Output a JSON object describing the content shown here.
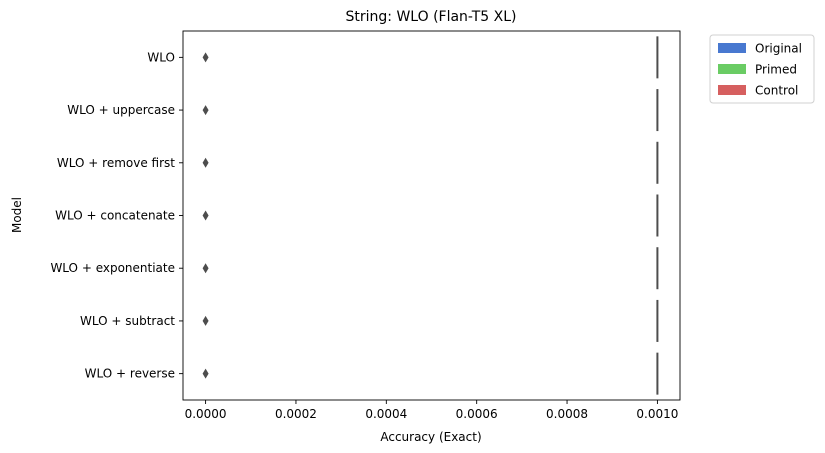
{
  "chart_data": {
    "type": "box",
    "title": "String: WLO (Flan-T5 XL)",
    "xlabel": "Accuracy (Exact)",
    "ylabel": "Model",
    "categories": [
      "WLO",
      "WLO + uppercase",
      "WLO + remove first",
      "WLO + concatenate",
      "WLO + exponentiate",
      "WLO + subtract",
      "WLO + reverse"
    ],
    "xlim": [
      -5e-05,
      0.00105
    ],
    "xticks": [
      "0.0000",
      "0.0002",
      "0.0004",
      "0.0006",
      "0.0008",
      "0.0010"
    ],
    "xtick_values": [
      0,
      0.0002,
      0.0004,
      0.0006,
      0.0008,
      0.001
    ],
    "box_value": 0.001,
    "outlier_value": 0,
    "grid": false,
    "legend_position": "outside-top-right",
    "legend": [
      {
        "name": "Original",
        "color": "#4878d0"
      },
      {
        "name": "Primed",
        "color": "#6acc64"
      },
      {
        "name": "Control",
        "color": "#d65f5f"
      }
    ],
    "line_color": "#4d4d4d"
  }
}
